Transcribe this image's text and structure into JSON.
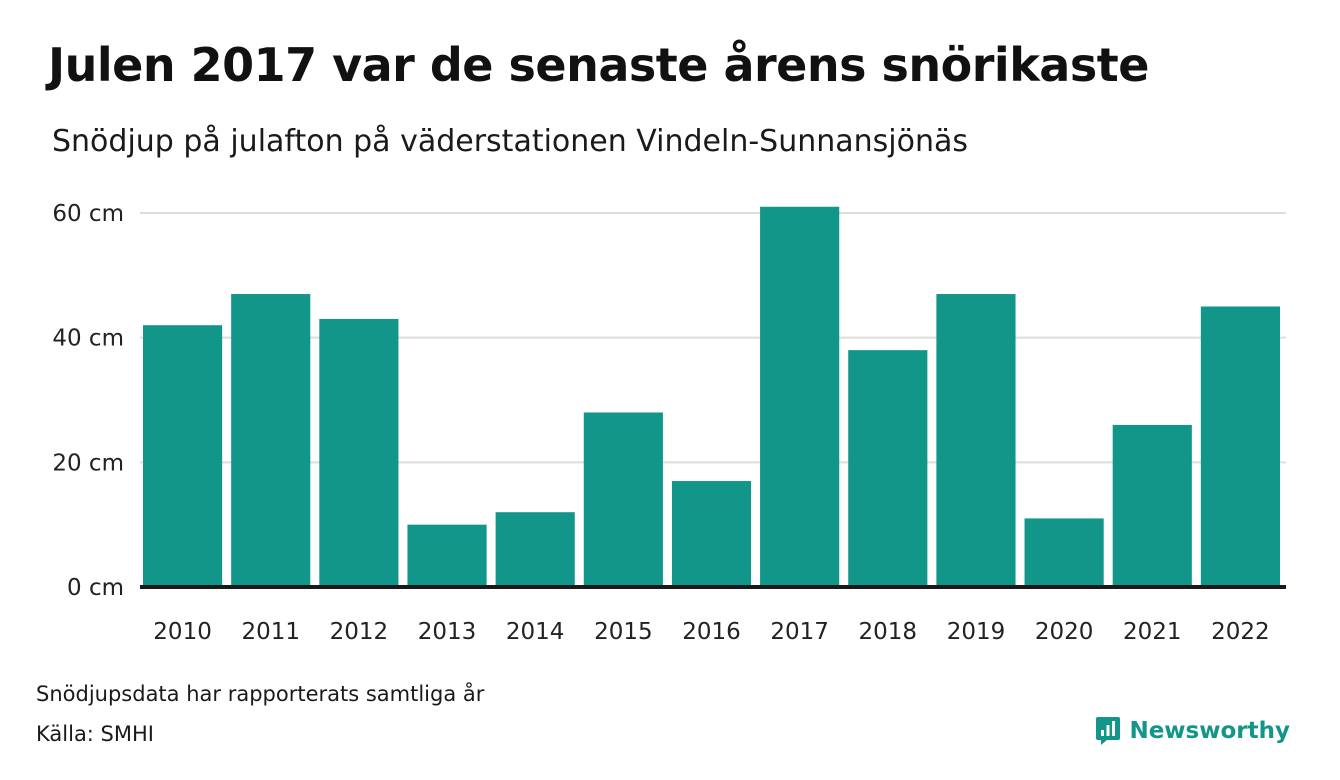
{
  "title": "Julen 2017 var de senaste årens snörikaste",
  "subtitle": "Snödjup på julafton på väderstationen Vindeln-Sunnansjönäs",
  "footnote": "Snödjupsdata har rapporterats samtliga år",
  "source": "Källa: SMHI",
  "brand": {
    "name": "Newsworthy",
    "icon": "newsworthy-logo-icon",
    "color": "#13968a"
  },
  "chart_data": {
    "type": "bar",
    "title": "Julen 2017 var de senaste årens snörikaste",
    "subtitle": "Snödjup på julafton på väderstationen Vindeln-Sunnansjönäs",
    "categories": [
      "2010",
      "2011",
      "2012",
      "2013",
      "2014",
      "2015",
      "2016",
      "2017",
      "2018",
      "2019",
      "2020",
      "2021",
      "2022"
    ],
    "values": [
      42,
      47,
      43,
      10,
      12,
      28,
      17,
      61,
      38,
      47,
      11,
      26,
      45
    ],
    "y_ticks": [
      0,
      20,
      40,
      60
    ],
    "y_tick_labels": [
      "0 cm",
      "20 cm",
      "40 cm",
      "60 cm"
    ],
    "ylim": [
      0,
      60
    ],
    "xlabel": "",
    "ylabel": "",
    "grid": true,
    "bar_color": "#13968a",
    "baseline_color": "#1a1a1a",
    "grid_color": "#dddddd"
  }
}
